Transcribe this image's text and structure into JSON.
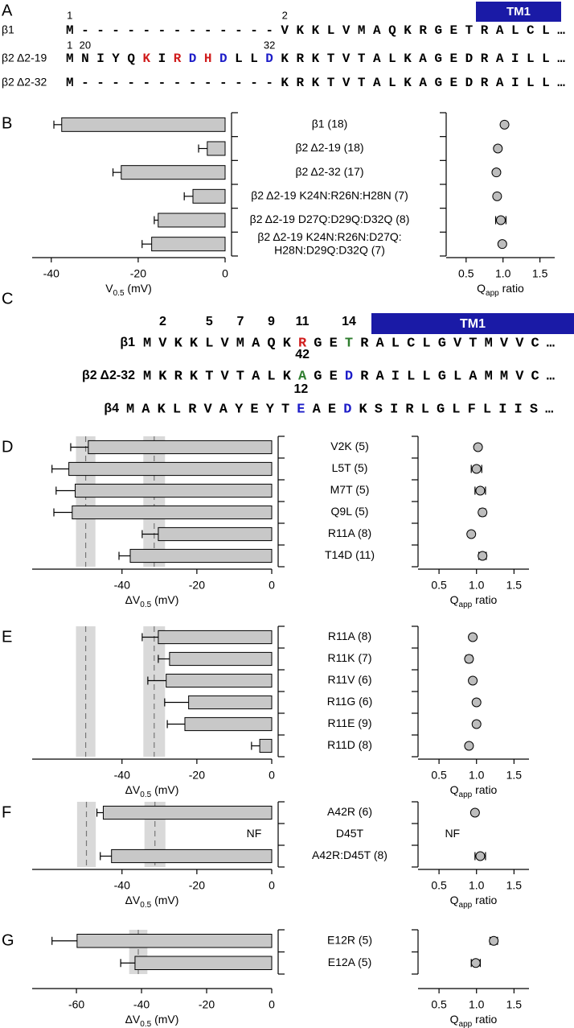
{
  "panel_a": {
    "letter": "A",
    "tm_label": "TM1",
    "rows": [
      {
        "label": "β1",
        "numbers": [
          "1",
          "2"
        ],
        "segments": [
          {
            "text": "M-------------VKKLVMAQKRGETRALCL…"
          }
        ]
      },
      {
        "label": "β2 Δ2-19",
        "numbers": [
          "1",
          "20",
          "32"
        ],
        "segments": [
          {
            "text": "MNIYQ"
          },
          {
            "text": "K",
            "color": "#d01c1c"
          },
          {
            "text": "I"
          },
          {
            "text": "R",
            "color": "#d01c1c"
          },
          {
            "text": "D",
            "color": "#1c1cc8"
          },
          {
            "text": "H",
            "color": "#d01c1c"
          },
          {
            "text": "D",
            "color": "#1c1cc8"
          },
          {
            "text": "LL"
          },
          {
            "text": "D",
            "color": "#1c1cc8"
          },
          {
            "text": "KRKTVTALKAGEDRAILL…"
          }
        ]
      },
      {
        "label": "β2 Δ2-32",
        "numbers": [],
        "segments": [
          {
            "text": "M-------------KRKTVTALKAGEDRAILL…"
          }
        ]
      }
    ]
  },
  "panel_c": {
    "letter": "C",
    "tm_label": "TM1",
    "rows": [
      {
        "label": "β1",
        "numbers": [
          "2",
          "5",
          "7",
          "9",
          "11",
          "14"
        ],
        "segments": [
          {
            "text": "MVKKLVMAQK"
          },
          {
            "text": "R",
            "color": "#d01c1c"
          },
          {
            "text": "GE"
          },
          {
            "text": "T",
            "color": "#2e7d2e"
          },
          {
            "text": "RALCLGVTMVVC…"
          }
        ]
      },
      {
        "label": "β2 Δ2-32",
        "numbers": [
          "42"
        ],
        "segments": [
          {
            "text": "MKRKTVTALK"
          },
          {
            "text": "A",
            "color": "#2e7d2e"
          },
          {
            "text": "GE"
          },
          {
            "text": "D",
            "color": "#1c1cc8"
          },
          {
            "text": "RAILLGLAMMVC…"
          }
        ]
      },
      {
        "label": "β4",
        "numbers": [
          "12"
        ],
        "segments": [
          {
            "text": "MAKLRVAYEYT"
          },
          {
            "text": "E",
            "color": "#1c1cc8"
          },
          {
            "text": "AE"
          },
          {
            "text": "D",
            "color": "#1c1cc8"
          },
          {
            "text": "KSIRLGLFLIIS…"
          }
        ]
      }
    ]
  },
  "chart_data": [
    {
      "type": "hbar",
      "panel": "B",
      "color": "#c8c8c8",
      "categories": [
        "β1 (18)",
        "β2 Δ2-19  (18)",
        "β2 Δ2-32 (17)",
        "β2 Δ2-19 K24N:R26N:H28N (7)",
        "β2 Δ2-19 D27Q:D29Q:D32Q (8)",
        "β2 Δ2-19 K24N:R26N:D27Q:\nH28N:D29Q:D32Q (7)"
      ],
      "values": [
        -37.6,
        -4.1,
        -23.9,
        -7.4,
        -15.4,
        -16.9
      ],
      "errors": [
        1.8,
        2.0,
        1.9,
        2.0,
        0.9,
        2.2
      ],
      "xlim": [
        -44.4,
        0
      ],
      "xticks": [
        -40,
        -20,
        0
      ],
      "xlabel": [
        "V",
        "0.5",
        " (mV)"
      ]
    },
    {
      "type": "dot",
      "color": "#bdbdbd",
      "values": [
        1.02,
        0.93,
        0.91,
        0.92,
        0.97,
        0.99
      ],
      "errors": [
        0.02,
        0.02,
        0.02,
        0.02,
        0.07,
        0.02
      ],
      "xlim": [
        0.23,
        1.7
      ],
      "xticks": [
        0.5,
        {
          "value": 1,
          "label": "1.0"
        },
        1.5
      ],
      "xlabel": [
        "Q",
        "app",
        " ratio"
      ]
    },
    {
      "type": "hbar",
      "panel": "D",
      "color": "#c8c8c8",
      "categories": [
        "V2K (5)",
        "L5T (5)",
        "M7T (5)",
        "Q9L (5)",
        "R11A (8)",
        "T14D (11)"
      ],
      "values": [
        -49,
        -54.2,
        -52.5,
        -53.3,
        -30.3,
        -37.8
      ],
      "errors": [
        4.7,
        4.5,
        5.1,
        4.9,
        4.3,
        3.0
      ],
      "reference": [
        {
          "value": -49.7,
          "error": 2.6
        },
        {
          "value": -31.4,
          "error": 2.9
        }
      ],
      "xlim": [
        -64,
        0
      ],
      "xticks": [
        -40,
        -20,
        0
      ],
      "xlabel": [
        "ΔV",
        "0.5",
        " (mV)"
      ]
    },
    {
      "type": "dot",
      "color": "#bdbdbd",
      "values": [
        1.02,
        1.0,
        1.05,
        1.08,
        0.93,
        1.08
      ],
      "errors": [
        0.03,
        0.07,
        0.07,
        0.04,
        0.02,
        0.05
      ],
      "xlim": [
        0.22,
        1.7
      ],
      "xticks": [
        0.5,
        {
          "value": 1,
          "label": "1.0"
        },
        1.5
      ],
      "xlabel": [
        "Q",
        "app",
        " ratio"
      ]
    },
    {
      "type": "hbar",
      "panel": "E",
      "color": "#c8c8c8",
      "categories": [
        "R11A (8)",
        "R11K (7)",
        "R11V (6)",
        "R11G (6)",
        "R11E (9)",
        "R11D (8)"
      ],
      "values": [
        -30.3,
        -27.3,
        -28.2,
        -22.2,
        -23.2,
        -3.2
      ],
      "errors": [
        4.3,
        3.0,
        4.9,
        6.4,
        4.7,
        2.2
      ],
      "reference": [
        {
          "value": -49.7,
          "error": 2.6
        },
        {
          "value": -31.4,
          "error": 2.9
        }
      ],
      "xlim": [
        -64,
        0
      ],
      "xticks": [
        -40,
        -20,
        0
      ],
      "xlabel": [
        "ΔV",
        "0.5",
        " (mV)"
      ]
    },
    {
      "type": "dot",
      "color": "#bdbdbd",
      "values": [
        0.95,
        0.9,
        0.95,
        1.0,
        1.0,
        0.9
      ],
      "errors": [
        0.03,
        0.04,
        0.03,
        0.03,
        0.03,
        0.02
      ],
      "xlim": [
        0.22,
        1.7
      ],
      "xticks": [
        0.5,
        {
          "value": 1,
          "label": "1.0"
        },
        1.5
      ],
      "xlabel": [
        "Q",
        "app",
        " ratio"
      ]
    },
    {
      "type": "hbar",
      "panel": "F",
      "color": "#c8c8c8",
      "categories": [
        "A42R (6)",
        "D45T",
        "A42R:D45T (8)"
      ],
      "values": [
        -45,
        null,
        -42.8
      ],
      "value_labels": [
        null,
        "NF",
        null
      ],
      "errors": [
        1.7,
        null,
        3.0
      ],
      "reference": [
        {
          "value": -49.5,
          "error": 2.5
        },
        {
          "value": -31.2,
          "error": 2.8
        }
      ],
      "xlim": [
        -64,
        0
      ],
      "xticks": [
        -40,
        -20,
        0
      ],
      "xlabel": [
        "ΔV",
        "0.5",
        " (mV)"
      ]
    },
    {
      "type": "dot",
      "color": "#bdbdbd",
      "values": [
        0.98,
        null,
        1.05
      ],
      "value_labels": [
        null,
        "NF",
        null
      ],
      "errors": [
        0.02,
        null,
        0.07
      ],
      "xlim": [
        0.22,
        1.7
      ],
      "xticks": [
        0.5,
        {
          "value": 1,
          "label": "1.0"
        },
        1.5
      ],
      "xlabel": [
        "Q",
        "app",
        " ratio"
      ]
    },
    {
      "type": "hbar",
      "panel": "G",
      "color": "#c8c8c8",
      "categories": [
        "E12R (5)",
        "E12A (5)"
      ],
      "values": [
        -59.8,
        -42
      ],
      "errors": [
        7.7,
        4.4
      ],
      "reference": [
        {
          "value": -41,
          "error": 2.8
        }
      ],
      "xlim": [
        -73.6,
        0
      ],
      "xticks": [
        -60,
        -40,
        -20,
        0
      ],
      "xlabel": [
        "ΔV",
        "0.5",
        " (mV)"
      ]
    },
    {
      "type": "dot",
      "color": "#bdbdbd",
      "values": [
        1.23,
        0.99
      ],
      "errors": [
        0.05,
        0.06
      ],
      "xlim": [
        0.22,
        1.7
      ],
      "xticks": [
        0.5,
        {
          "value": 1,
          "label": "1.0"
        },
        1.5
      ],
      "xlabel": [
        "Q",
        "app",
        " ratio"
      ]
    }
  ]
}
